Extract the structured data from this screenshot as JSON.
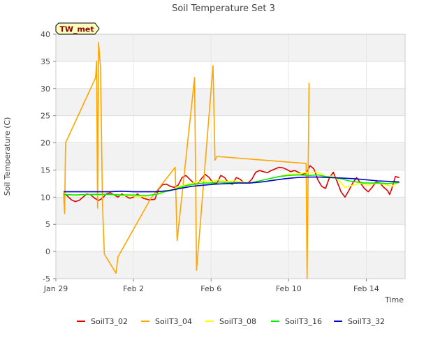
{
  "chart_data": {
    "type": "line",
    "title": "Soil Temperature Set 3",
    "xlabel": "Time",
    "ylabel": "Soil Temperature (C)",
    "badge": "TW_met",
    "xlim": [
      0,
      18
    ],
    "ylim": [
      -5,
      40
    ],
    "yticks": [
      -5,
      0,
      5,
      10,
      15,
      20,
      25,
      30,
      35,
      40
    ],
    "xticks": [
      {
        "value": 0,
        "label": "Jan 29"
      },
      {
        "value": 4,
        "label": "Feb 2"
      },
      {
        "value": 8,
        "label": "Feb 6"
      },
      {
        "value": 12,
        "label": "Feb 10"
      },
      {
        "value": 16,
        "label": "Feb 14"
      }
    ],
    "grid": true,
    "legend_position": "bottom",
    "series": [
      {
        "name": "SoilT3_02",
        "color": "#dd0000",
        "points": [
          [
            0.4,
            10.8
          ],
          [
            0.6,
            10.2
          ],
          [
            0.8,
            9.5
          ],
          [
            1.0,
            9.2
          ],
          [
            1.2,
            9.4
          ],
          [
            1.4,
            10.0
          ],
          [
            1.6,
            10.6
          ],
          [
            1.8,
            10.4
          ],
          [
            2.0,
            9.8
          ],
          [
            2.2,
            9.4
          ],
          [
            2.4,
            9.8
          ],
          [
            2.6,
            10.6
          ],
          [
            2.8,
            10.8
          ],
          [
            3.0,
            10.4
          ],
          [
            3.2,
            10.0
          ],
          [
            3.4,
            10.6
          ],
          [
            3.6,
            10.2
          ],
          [
            3.8,
            9.8
          ],
          [
            4.0,
            10.0
          ],
          [
            4.2,
            10.6
          ],
          [
            4.5,
            9.8
          ],
          [
            4.8,
            9.5
          ],
          [
            5.1,
            9.6
          ],
          [
            5.3,
            11.5
          ],
          [
            5.5,
            12.3
          ],
          [
            5.7,
            12.4
          ],
          [
            5.9,
            12.0
          ],
          [
            6.1,
            11.8
          ],
          [
            6.3,
            12.2
          ],
          [
            6.5,
            13.6
          ],
          [
            6.7,
            14.0
          ],
          [
            6.9,
            13.3
          ],
          [
            7.1,
            12.6
          ],
          [
            7.3,
            12.4
          ],
          [
            7.5,
            13.4
          ],
          [
            7.7,
            14.2
          ],
          [
            7.9,
            13.6
          ],
          [
            8.1,
            12.6
          ],
          [
            8.3,
            12.6
          ],
          [
            8.5,
            14.0
          ],
          [
            8.7,
            13.6
          ],
          [
            8.9,
            12.6
          ],
          [
            9.1,
            12.4
          ],
          [
            9.3,
            13.6
          ],
          [
            9.5,
            13.3
          ],
          [
            9.7,
            12.6
          ],
          [
            9.9,
            12.6
          ],
          [
            10.1,
            13.3
          ],
          [
            10.3,
            14.6
          ],
          [
            10.5,
            14.9
          ],
          [
            10.7,
            14.7
          ],
          [
            10.9,
            14.5
          ],
          [
            11.1,
            14.9
          ],
          [
            11.3,
            15.2
          ],
          [
            11.5,
            15.5
          ],
          [
            11.7,
            15.4
          ],
          [
            11.9,
            15.1
          ],
          [
            12.1,
            14.7
          ],
          [
            12.3,
            14.9
          ],
          [
            12.5,
            14.6
          ],
          [
            12.7,
            14.2
          ],
          [
            12.9,
            14.4
          ],
          [
            13.1,
            15.8
          ],
          [
            13.3,
            15.2
          ],
          [
            13.5,
            13.2
          ],
          [
            13.7,
            12.0
          ],
          [
            13.9,
            11.6
          ],
          [
            14.1,
            13.6
          ],
          [
            14.3,
            14.6
          ],
          [
            14.5,
            12.8
          ],
          [
            14.7,
            11.0
          ],
          [
            14.9,
            10.0
          ],
          [
            15.1,
            11.2
          ],
          [
            15.3,
            12.6
          ],
          [
            15.5,
            13.6
          ],
          [
            15.7,
            12.6
          ],
          [
            15.9,
            11.6
          ],
          [
            16.1,
            11.0
          ],
          [
            16.3,
            11.8
          ],
          [
            16.5,
            12.8
          ],
          [
            16.7,
            12.6
          ],
          [
            16.9,
            11.8
          ],
          [
            17.1,
            11.2
          ],
          [
            17.2,
            10.5
          ],
          [
            17.3,
            11.4
          ],
          [
            17.4,
            12.6
          ],
          [
            17.5,
            13.8
          ],
          [
            17.7,
            13.6
          ]
        ]
      },
      {
        "name": "SoilT3_04",
        "color": "#ffa500",
        "points": [
          [
            0.4,
            10.6
          ],
          [
            0.45,
            7.0
          ],
          [
            0.5,
            20.0
          ],
          [
            2.05,
            32.0
          ],
          [
            2.1,
            35.0
          ],
          [
            2.15,
            8.0
          ],
          [
            2.2,
            38.5
          ],
          [
            2.3,
            34.0
          ],
          [
            2.4,
            9.0
          ],
          [
            2.5,
            -0.5
          ],
          [
            3.1,
            -4.0
          ],
          [
            3.2,
            -1.0
          ],
          [
            4.9,
            9.8
          ],
          [
            6.15,
            15.5
          ],
          [
            6.25,
            2.0
          ],
          [
            7.15,
            32.0
          ],
          [
            7.25,
            -3.5
          ],
          [
            8.1,
            34.2
          ],
          [
            8.2,
            16.8
          ],
          [
            8.3,
            17.5
          ],
          [
            12.9,
            16.2
          ],
          [
            12.95,
            -5.0
          ],
          [
            13.05,
            31.0
          ]
        ]
      },
      {
        "name": "SoilT3_08",
        "color": "#ffff00",
        "points": [
          [
            0.4,
            10.6
          ],
          [
            1.0,
            10.3
          ],
          [
            1.6,
            10.5
          ],
          [
            2.2,
            10.4
          ],
          [
            2.8,
            10.5
          ],
          [
            3.4,
            10.3
          ],
          [
            4.0,
            10.2
          ],
          [
            4.6,
            10.1
          ],
          [
            5.2,
            10.6
          ],
          [
            5.6,
            11.2
          ],
          [
            6.0,
            11.4
          ],
          [
            6.4,
            12.0
          ],
          [
            6.8,
            12.4
          ],
          [
            7.2,
            12.7
          ],
          [
            7.6,
            13.0
          ],
          [
            8.0,
            12.9
          ],
          [
            8.4,
            13.2
          ],
          [
            8.8,
            12.9
          ],
          [
            9.2,
            13.0
          ],
          [
            9.6,
            12.8
          ],
          [
            10.0,
            12.6
          ],
          [
            10.5,
            13.0
          ],
          [
            11.0,
            13.4
          ],
          [
            11.5,
            13.8
          ],
          [
            12.0,
            14.2
          ],
          [
            12.5,
            14.3
          ],
          [
            13.0,
            14.6
          ],
          [
            13.5,
            14.6
          ],
          [
            13.9,
            13.8
          ],
          [
            14.3,
            13.9
          ],
          [
            14.6,
            13.0
          ],
          [
            14.9,
            11.8
          ],
          [
            15.3,
            12.2
          ],
          [
            15.7,
            12.6
          ],
          [
            16.1,
            12.2
          ],
          [
            16.5,
            12.6
          ],
          [
            16.9,
            12.4
          ],
          [
            17.3,
            12.0
          ],
          [
            17.7,
            12.8
          ]
        ]
      },
      {
        "name": "SoilT3_16",
        "color": "#00ee00",
        "points": [
          [
            0.4,
            10.5
          ],
          [
            1.0,
            10.4
          ],
          [
            1.6,
            10.5
          ],
          [
            2.2,
            10.5
          ],
          [
            2.8,
            10.5
          ],
          [
            3.4,
            10.4
          ],
          [
            4.0,
            10.4
          ],
          [
            4.6,
            10.3
          ],
          [
            5.2,
            10.5
          ],
          [
            5.6,
            11.0
          ],
          [
            6.0,
            11.3
          ],
          [
            6.4,
            11.8
          ],
          [
            6.8,
            12.2
          ],
          [
            7.2,
            12.4
          ],
          [
            7.6,
            12.6
          ],
          [
            8.0,
            12.6
          ],
          [
            8.4,
            12.8
          ],
          [
            8.8,
            12.7
          ],
          [
            9.2,
            12.7
          ],
          [
            9.6,
            12.6
          ],
          [
            10.0,
            12.6
          ],
          [
            10.5,
            13.0
          ],
          [
            11.0,
            13.4
          ],
          [
            11.5,
            13.8
          ],
          [
            12.0,
            14.0
          ],
          [
            12.5,
            14.1
          ],
          [
            13.0,
            14.0
          ],
          [
            13.5,
            14.1
          ],
          [
            13.9,
            13.8
          ],
          [
            14.3,
            13.6
          ],
          [
            14.7,
            13.4
          ],
          [
            15.1,
            13.0
          ],
          [
            15.5,
            12.8
          ],
          [
            15.9,
            12.6
          ],
          [
            16.3,
            12.6
          ],
          [
            16.7,
            12.6
          ],
          [
            17.1,
            12.5
          ],
          [
            17.7,
            12.7
          ]
        ]
      },
      {
        "name": "SoilT3_32",
        "color": "#0000cc",
        "points": [
          [
            0.4,
            11.0
          ],
          [
            1.0,
            11.0
          ],
          [
            1.6,
            11.0
          ],
          [
            2.2,
            11.0
          ],
          [
            2.8,
            11.0
          ],
          [
            3.4,
            11.1
          ],
          [
            4.0,
            11.0
          ],
          [
            4.6,
            11.0
          ],
          [
            5.2,
            11.0
          ],
          [
            5.8,
            11.2
          ],
          [
            6.4,
            11.6
          ],
          [
            7.0,
            12.0
          ],
          [
            7.6,
            12.2
          ],
          [
            8.2,
            12.4
          ],
          [
            8.8,
            12.5
          ],
          [
            9.4,
            12.6
          ],
          [
            10.0,
            12.6
          ],
          [
            10.6,
            12.8
          ],
          [
            11.2,
            13.1
          ],
          [
            11.8,
            13.4
          ],
          [
            12.4,
            13.6
          ],
          [
            13.0,
            13.7
          ],
          [
            13.6,
            13.7
          ],
          [
            14.2,
            13.6
          ],
          [
            14.8,
            13.5
          ],
          [
            15.4,
            13.4
          ],
          [
            16.0,
            13.2
          ],
          [
            16.6,
            13.0
          ],
          [
            17.2,
            12.9
          ],
          [
            17.7,
            12.8
          ]
        ]
      }
    ]
  }
}
